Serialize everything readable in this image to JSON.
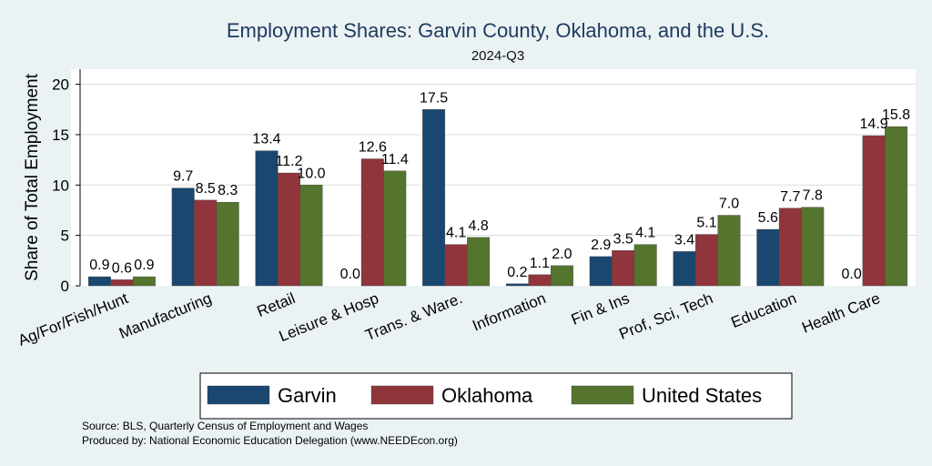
{
  "chart_data": {
    "type": "bar",
    "title": "Employment Shares: Garvin County, Oklahoma, and the U.S.",
    "subtitle": "2024-Q3",
    "ylabel": "Share of Total Employment",
    "xlabel": "",
    "ylim": [
      0,
      21.5
    ],
    "yticks": [
      0,
      5,
      10,
      15,
      20
    ],
    "grid": true,
    "legend_position": "bottom",
    "categories": [
      "Ag/For/Fish/Hunt",
      "Manufacturing",
      "Retail",
      "Leisure & Hosp",
      "Trans. & Ware.",
      "Information",
      "Fin & Ins",
      "Prof, Sci, Tech",
      "Education",
      "Health Care"
    ],
    "series": [
      {
        "name": "Garvin",
        "color": "#1a476f",
        "values": [
          0.9,
          9.7,
          13.4,
          0.0,
          17.5,
          0.2,
          2.9,
          3.4,
          5.6,
          0.0
        ]
      },
      {
        "name": "Oklahoma",
        "color": "#90353b",
        "values": [
          0.6,
          8.5,
          11.2,
          12.6,
          4.1,
          1.1,
          3.5,
          5.1,
          7.7,
          14.9
        ]
      },
      {
        "name": "United States",
        "color": "#55752f",
        "values": [
          0.9,
          8.3,
          10.0,
          11.4,
          4.8,
          2.0,
          4.1,
          7.0,
          7.8,
          15.8
        ]
      }
    ]
  },
  "notes": {
    "source": "Source: BLS, Quarterly Census of Employment and Wages",
    "produced_by": "Produced by: National Economic Education Delegation (www.NEEDEcon.org)"
  }
}
